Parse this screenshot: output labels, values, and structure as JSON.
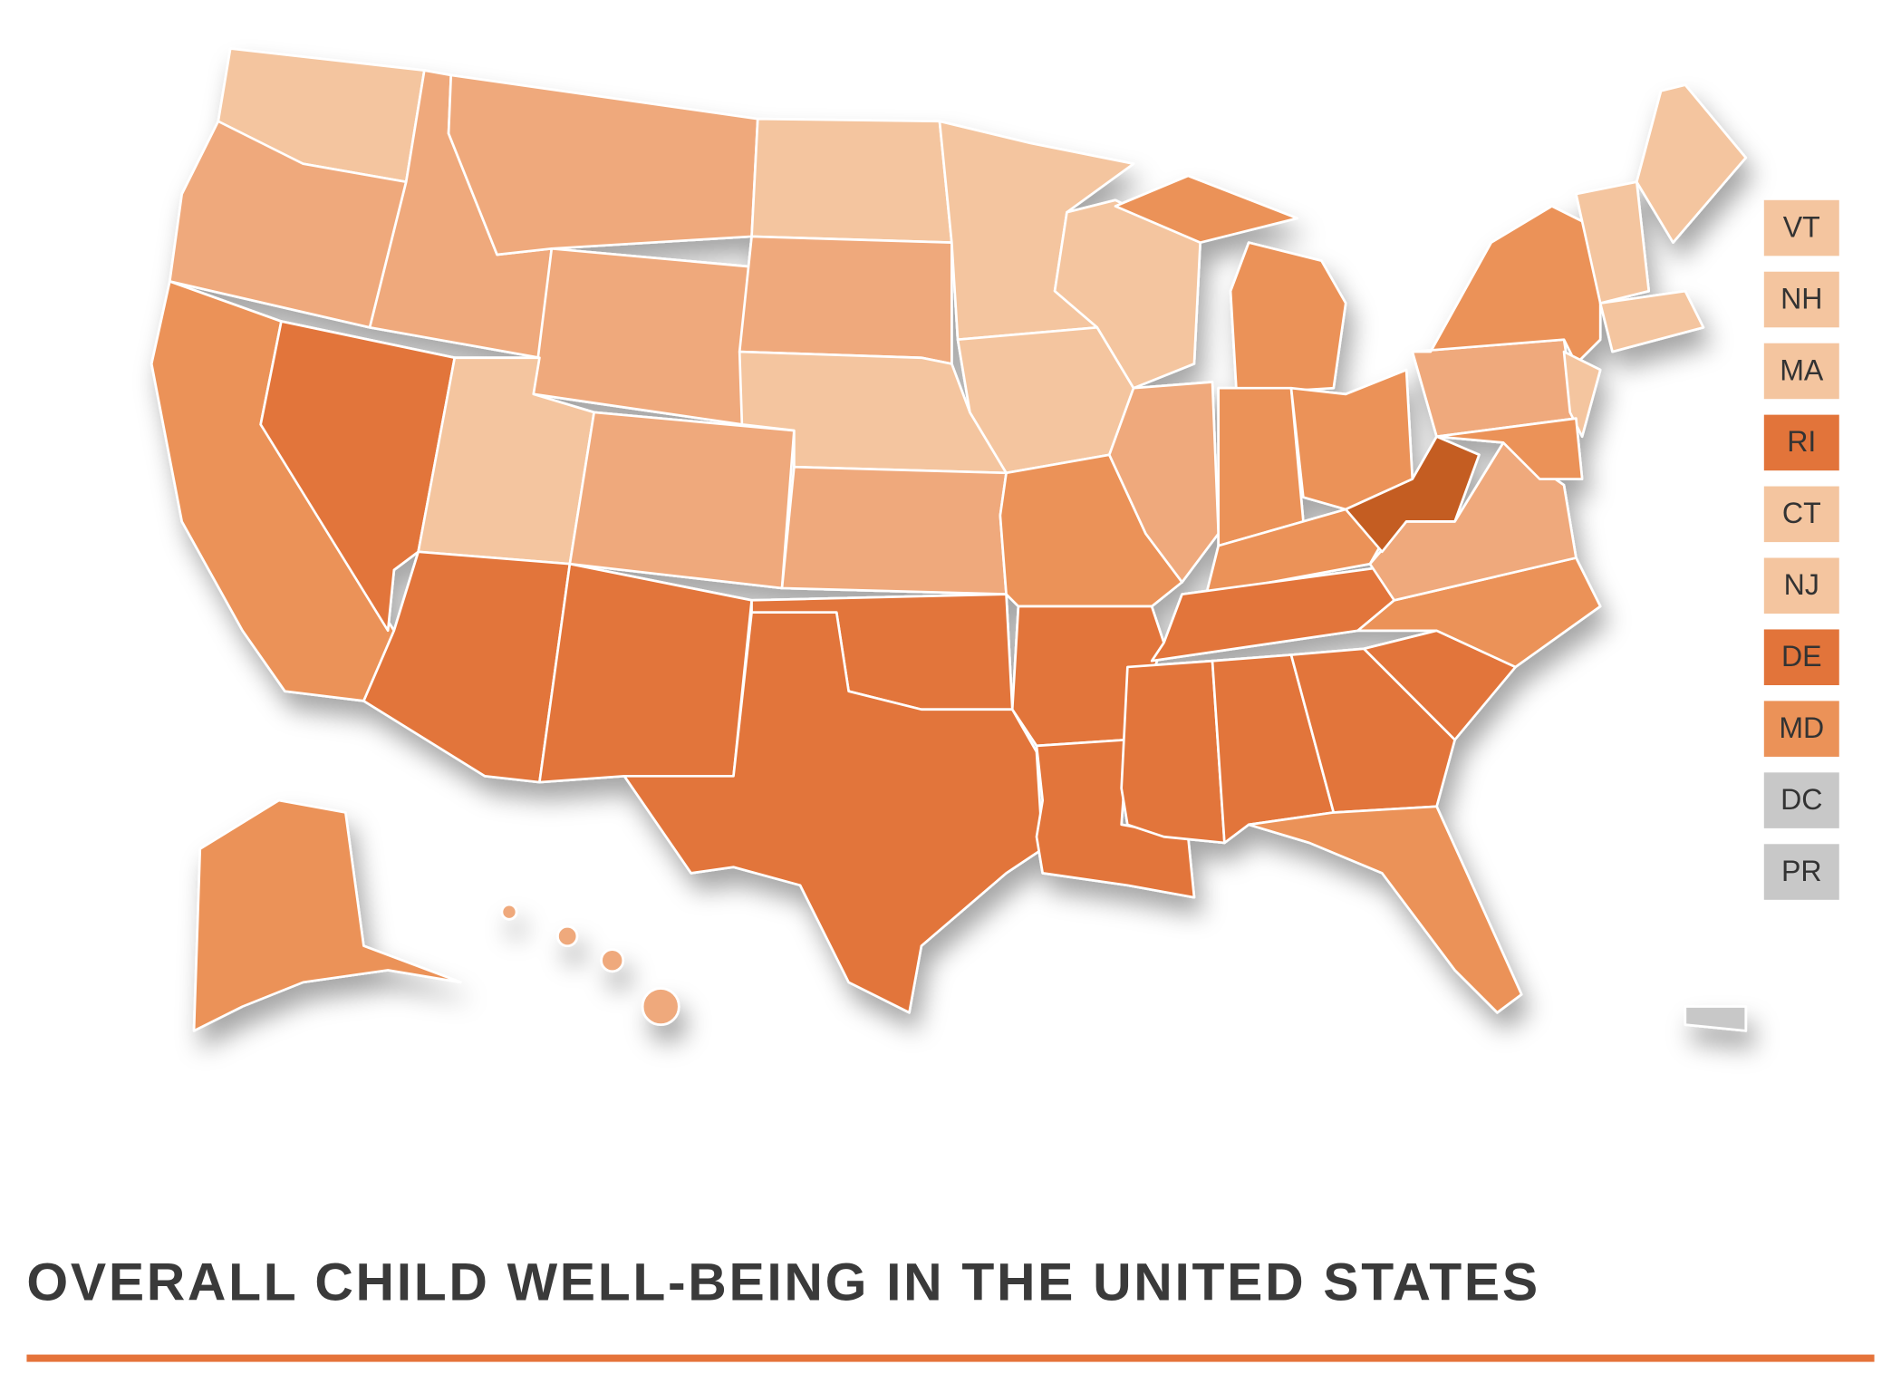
{
  "title": "OVERALL CHILD WELL-BEING IN THE UNITED STATES",
  "small_states": [
    {
      "label": "VT",
      "color": "#f4c59f"
    },
    {
      "label": "NH",
      "color": "#f4c59f"
    },
    {
      "label": "MA",
      "color": "#f4c59f"
    },
    {
      "label": "RI",
      "color": "#e2743a"
    },
    {
      "label": "CT",
      "color": "#f4c59f"
    },
    {
      "label": "NJ",
      "color": "#f4c59f"
    },
    {
      "label": "DE",
      "color": "#e2743a"
    },
    {
      "label": "MD",
      "color": "#eb9258"
    },
    {
      "label": "DC",
      "color": "#c8c8c8"
    },
    {
      "label": "PR",
      "color": "#c8c8c8"
    }
  ]
}
